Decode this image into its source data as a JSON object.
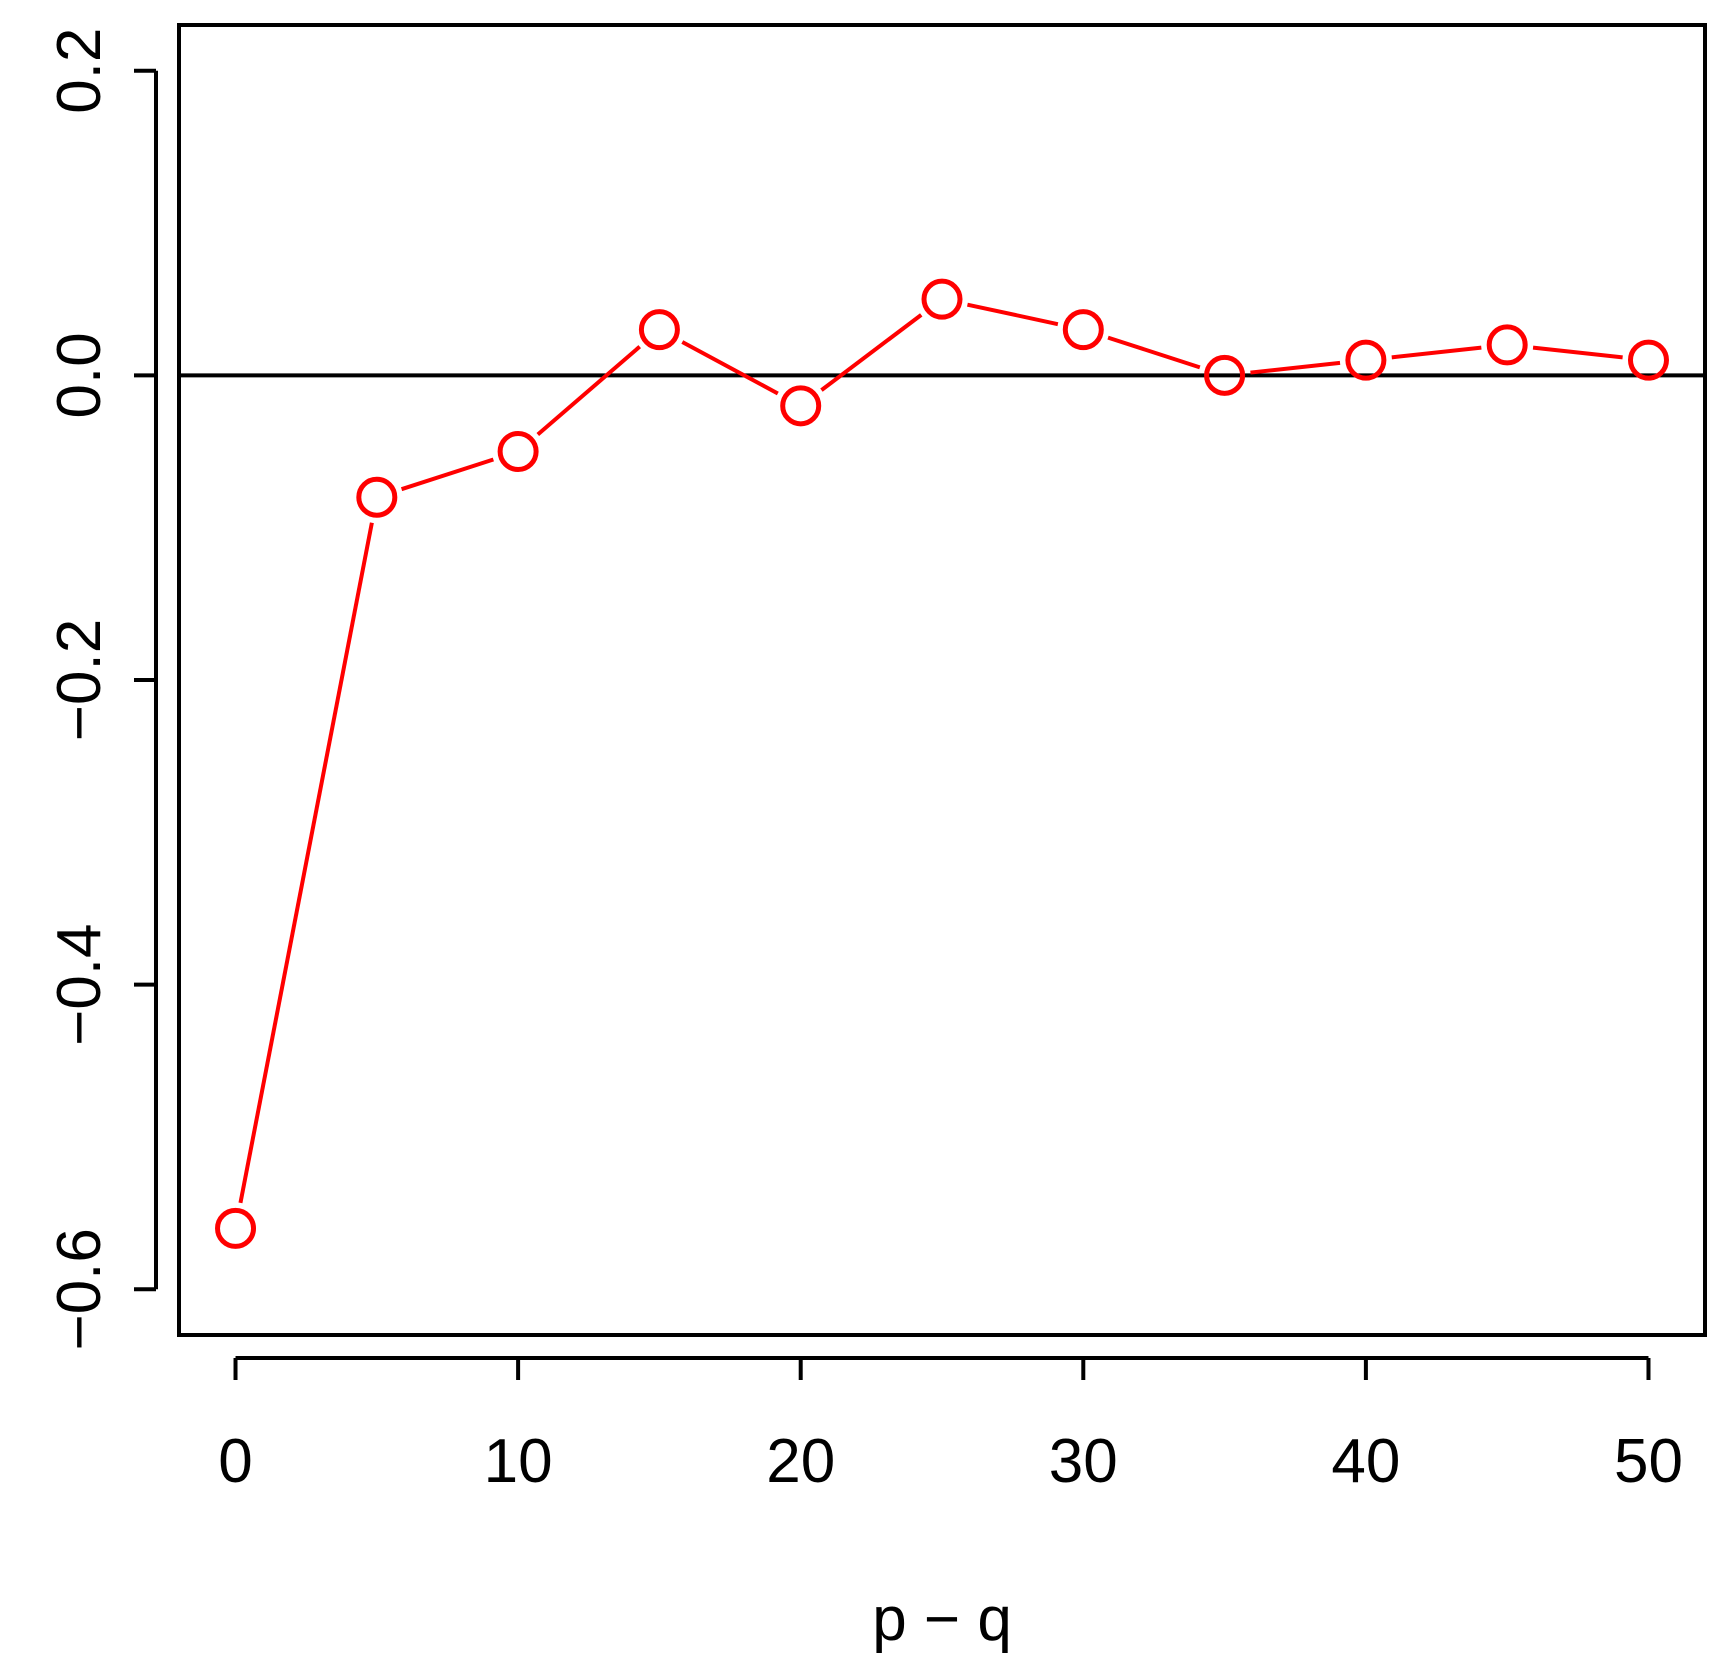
{
  "chart_data": {
    "type": "line",
    "title": "",
    "xlabel": "p − q",
    "ylabel": "",
    "xlim": [
      -2,
      52
    ],
    "ylim": [
      -0.63,
      0.23
    ],
    "x_ticks": [
      0,
      10,
      20,
      30,
      40,
      50
    ],
    "y_ticks": [
      -0.6,
      -0.4,
      -0.2,
      0.0,
      0.2
    ],
    "x_tick_labels": [
      "0",
      "10",
      "20",
      "30",
      "40",
      "50"
    ],
    "y_tick_labels": [
      "−0.6",
      "−0.4",
      "−0.2",
      "0.0",
      "0.2"
    ],
    "reference_line_y": 0.0,
    "grid": false,
    "legend": "none",
    "series": [
      {
        "color": "#ff0000",
        "marker": "open-circle",
        "x": [
          0,
          5,
          10,
          15,
          20,
          25,
          30,
          35,
          40,
          45,
          50
        ],
        "y": [
          -0.56,
          -0.08,
          -0.05,
          0.03,
          -0.02,
          0.05,
          0.03,
          0.0,
          0.01,
          0.02,
          0.01
        ]
      }
    ]
  }
}
